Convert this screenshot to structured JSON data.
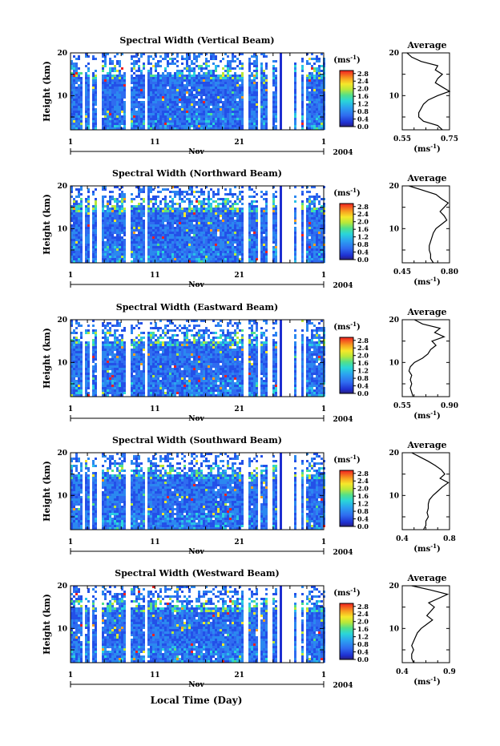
{
  "xlabel": "Local Time (Day)",
  "chart_data": [
    {
      "type": "heatmap",
      "title": "Spectral Width (Vertical Beam)",
      "ylabel": "Height (km)",
      "x_ticks": [
        "1",
        "11",
        "21",
        "1"
      ],
      "month": "Nov",
      "year": "2004",
      "y_ticks": [
        "10",
        "20"
      ],
      "ylim": [
        2,
        20
      ],
      "colorbar": {
        "unit": "(ms",
        "unit_exp": "-1",
        "unit_close": ")",
        "ticks": [
          "0.0",
          "0.4",
          "0.8",
          "1.2",
          "1.6",
          "2.0",
          "2.4",
          "2.8"
        ]
      },
      "average": {
        "title": "Average",
        "xlabel": "(ms",
        "xlabel_exp": "-1",
        "xlabel_close": ")",
        "x_ticks": [
          "0.55",
          "0.75"
        ],
        "xlim": [
          0.55,
          0.75
        ],
        "y_ticks": [
          "10",
          "20"
        ],
        "profile": {
          "height": [
            2,
            3,
            4,
            5,
            6,
            7,
            8,
            9,
            10,
            11,
            12,
            13,
            14,
            15,
            16,
            17,
            18,
            19,
            20
          ],
          "value": [
            0.72,
            0.7,
            0.64,
            0.62,
            0.62,
            0.63,
            0.64,
            0.66,
            0.7,
            0.75,
            0.72,
            0.69,
            0.7,
            0.72,
            0.69,
            0.7,
            0.63,
            0.59,
            0.57
          ]
        }
      }
    },
    {
      "type": "heatmap",
      "title": "Spectral Width (Northward Beam)",
      "ylabel": "Height (km)",
      "x_ticks": [
        "1",
        "11",
        "21",
        "1"
      ],
      "month": "Nov",
      "year": "2004",
      "y_ticks": [
        "10",
        "20"
      ],
      "ylim": [
        2,
        20
      ],
      "colorbar": {
        "unit": "(ms",
        "unit_exp": "-1",
        "unit_close": ")",
        "ticks": [
          "0.0",
          "0.4",
          "0.8",
          "1.2",
          "1.6",
          "2.0",
          "2.4",
          "2.8"
        ]
      },
      "average": {
        "title": "Average",
        "xlabel": "(ms",
        "xlabel_exp": "-1",
        "xlabel_close": ")",
        "x_ticks": [
          "0.45",
          "0.80"
        ],
        "xlim": [
          0.45,
          0.8
        ],
        "y_ticks": [
          "10",
          "20"
        ],
        "profile": {
          "height": [
            2,
            3,
            4,
            5,
            6,
            7,
            8,
            9,
            10,
            11,
            12,
            13,
            14,
            15,
            16,
            17,
            18,
            19,
            20
          ],
          "value": [
            0.68,
            0.66,
            0.66,
            0.65,
            0.65,
            0.66,
            0.67,
            0.68,
            0.7,
            0.74,
            0.78,
            0.76,
            0.73,
            0.76,
            0.79,
            0.74,
            0.7,
            0.6,
            0.5
          ]
        }
      }
    },
    {
      "type": "heatmap",
      "title": "Spectral Width (Eastward Beam)",
      "ylabel": "Height (km)",
      "x_ticks": [
        "1",
        "11",
        "21",
        "1"
      ],
      "month": "Nov",
      "year": "2004",
      "y_ticks": [
        "10",
        "20"
      ],
      "ylim": [
        2,
        20
      ],
      "colorbar": {
        "unit": "(ms",
        "unit_exp": "-1",
        "unit_close": ")",
        "ticks": [
          "0.0",
          "0.4",
          "0.8",
          "1.2",
          "1.6",
          "2.0",
          "2.4",
          "2.8"
        ]
      },
      "average": {
        "title": "Average",
        "xlabel": "(ms",
        "xlabel_exp": "-1",
        "xlabel_close": ")",
        "x_ticks": [
          "0.55",
          "0.90"
        ],
        "xlim": [
          0.55,
          0.9
        ],
        "y_ticks": [
          "10",
          "20"
        ],
        "profile": {
          "height": [
            2,
            3,
            4,
            5,
            6,
            7,
            8,
            9,
            10,
            11,
            12,
            13,
            14,
            15,
            16,
            17,
            18,
            19,
            20
          ],
          "value": [
            0.63,
            0.62,
            0.61,
            0.62,
            0.61,
            0.62,
            0.6,
            0.61,
            0.64,
            0.7,
            0.74,
            0.76,
            0.8,
            0.77,
            0.86,
            0.79,
            0.83,
            0.7,
            0.64
          ]
        }
      }
    },
    {
      "type": "heatmap",
      "title": "Spectral Width (Southward Beam)",
      "ylabel": "Height (km)",
      "x_ticks": [
        "1",
        "11",
        "21",
        "1"
      ],
      "month": "Nov",
      "year": "2004",
      "y_ticks": [
        "10",
        "20"
      ],
      "ylim": [
        2,
        20
      ],
      "colorbar": {
        "unit": "(ms",
        "unit_exp": "-1",
        "unit_close": ")",
        "ticks": [
          "0.0",
          "0.4",
          "0.8",
          "1.2",
          "1.6",
          "2.0",
          "2.4",
          "2.8"
        ]
      },
      "average": {
        "title": "Average",
        "xlabel": "(ms",
        "xlabel_exp": "-1",
        "xlabel_close": ")",
        "x_ticks": [
          "0.4",
          "0.8"
        ],
        "xlim": [
          0.4,
          0.8
        ],
        "y_ticks": [
          "10",
          "20"
        ],
        "profile": {
          "height": [
            2,
            3,
            4,
            5,
            6,
            7,
            8,
            9,
            10,
            11,
            12,
            13,
            14,
            15,
            16,
            17,
            18,
            19,
            20
          ],
          "value": [
            0.58,
            0.6,
            0.6,
            0.62,
            0.61,
            0.62,
            0.62,
            0.63,
            0.66,
            0.7,
            0.74,
            0.79,
            0.72,
            0.76,
            0.73,
            0.68,
            0.62,
            0.55,
            0.48
          ]
        }
      }
    },
    {
      "type": "heatmap",
      "title": "Spectral Width (Westward Beam)",
      "ylabel": "Height (km)",
      "x_ticks": [
        "1",
        "11",
        "21",
        "1"
      ],
      "month": "Nov",
      "year": "2004",
      "y_ticks": [
        "10",
        "20"
      ],
      "ylim": [
        2,
        20
      ],
      "colorbar": {
        "unit": "(ms",
        "unit_exp": "-1",
        "unit_close": ")",
        "ticks": [
          "0.0",
          "0.4",
          "0.8",
          "1.2",
          "1.6",
          "2.0",
          "2.4",
          "2.8"
        ]
      },
      "average": {
        "title": "Average",
        "xlabel": "(ms",
        "xlabel_exp": "-1",
        "xlabel_close": ")",
        "x_ticks": [
          "0.4",
          "0.9"
        ],
        "xlim": [
          0.4,
          0.9
        ],
        "y_ticks": [
          "10",
          "20"
        ],
        "profile": {
          "height": [
            2,
            3,
            4,
            5,
            6,
            7,
            8,
            9,
            10,
            11,
            12,
            13,
            14,
            15,
            16,
            17,
            18,
            19,
            20
          ],
          "value": [
            0.52,
            0.5,
            0.5,
            0.52,
            0.5,
            0.52,
            0.54,
            0.56,
            0.6,
            0.66,
            0.72,
            0.66,
            0.7,
            0.74,
            0.68,
            0.78,
            0.88,
            0.7,
            0.5
          ]
        }
      }
    }
  ]
}
